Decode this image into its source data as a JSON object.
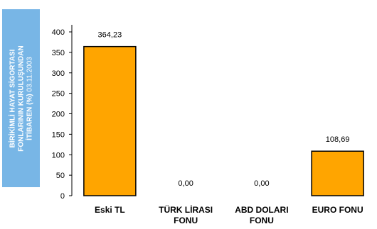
{
  "chart_data": {
    "type": "bar",
    "ylabel": {
      "line1": "BİRİKİMLİ HAYAT SİGORTASI",
      "line2": "FONLARININ KURULUŞUNDAN",
      "line3_bold": "İTİBAREN (%)",
      "line3_plain": " 03.11.2003"
    },
    "categories": [
      [
        "Eski TL"
      ],
      [
        "TÜRK LİRASI",
        "FONU"
      ],
      [
        "ABD DOLARI",
        "FONU"
      ],
      [
        "EURO FONU"
      ]
    ],
    "values": [
      364.23,
      0.0,
      0.0,
      108.69
    ],
    "value_labels": [
      "364,23",
      "0,00",
      "0,00",
      "108,69"
    ],
    "ylim": [
      0,
      400
    ],
    "yticks": [
      0,
      50,
      100,
      150,
      200,
      250,
      300,
      350,
      400
    ],
    "bar_color": "#ffa500",
    "grid": false,
    "legend": "none"
  }
}
